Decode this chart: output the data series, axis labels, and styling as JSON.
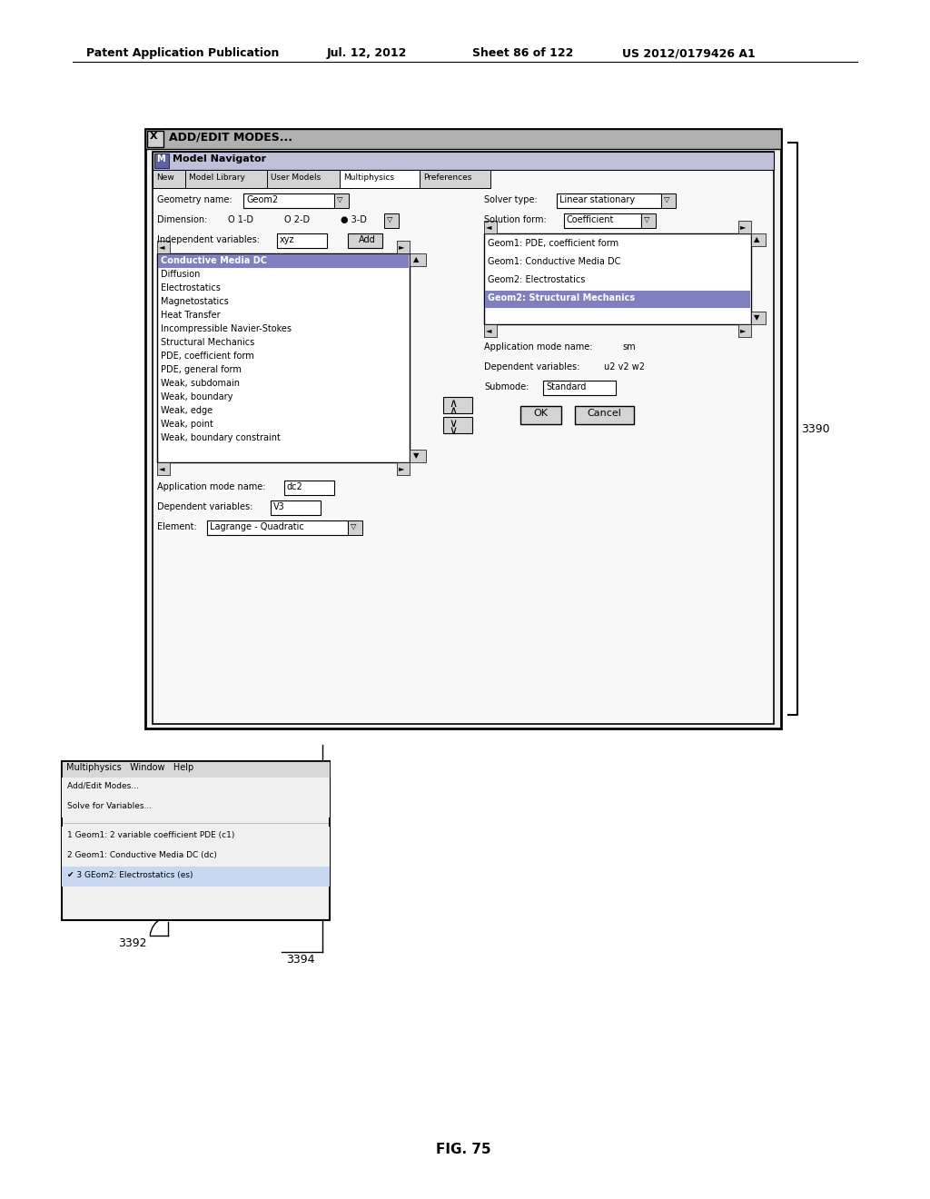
{
  "bg_color": "#ffffff",
  "header_text": "Patent Application Publication",
  "header_date": "Jul. 12, 2012",
  "header_sheet": "Sheet 86 of 122",
  "header_patent": "US 2012/0179426 A1",
  "fig_label": "FIG. 75",
  "label_3390": "3390",
  "label_3392": "3392",
  "label_3394": "3394",
  "title_main": "ADD/EDIT MODES...",
  "nav_title": "Model Navigator",
  "nav_tabs": [
    "New",
    "Model Library",
    "User Models",
    "Multiphysics",
    "Preferences"
  ],
  "geom_label": "Geometry name:",
  "geom_value": "Geom2",
  "dim_label": "Dimension:",
  "dim_options": [
    "O 1-D",
    "O 2-D",
    "● 3-D"
  ],
  "indep_label": "Independent variables:",
  "indep_value": "xyz",
  "add_btn": "Add",
  "modes_list": [
    "Conductive Media DC",
    "Diffusion",
    "Electrostatics",
    "Magnetostatics",
    "Heat Transfer",
    "Incompressible Navier-Stokes",
    "Structural Mechanics",
    "PDE, coefficient form",
    "PDE, general form",
    "Weak, subdomain",
    "Weak, boundary",
    "Weak, edge",
    "Weak, point",
    "Weak, boundary constraint"
  ],
  "modes_selected": "Conductive Media DC",
  "app_mode_label2": "Application mode name:",
  "app_mode_value2": "dc2",
  "dep_vars_label2": "Dependent variables:",
  "dep_vars_value2": "V3",
  "element_label": "Element:",
  "element_value": "Lagrange - Quadratic",
  "solver_label": "Solver type:",
  "solver_value": "Linear stationary",
  "solution_label": "Solution form:",
  "solution_value": "Coefficient",
  "right_list": [
    "Geom1: PDE, coefficient form",
    "Geom1: Conductive Media DC",
    "Geom2: Electrostatics",
    "Geom2: Structural Mechanics"
  ],
  "right_selected": "Geom2: Structural Mechanics",
  "app_mode_label": "Application mode name:",
  "app_mode_value": "sm",
  "dep_vars_label": "Dependent variables:",
  "dep_vars_value": "u2 v2 w2",
  "submode_label": "Submode:",
  "submode_value": "Standard",
  "ok_btn": "OK",
  "cancel_btn": "Cancel",
  "menu_bar": "Multiphysics   Window   Help",
  "menu_item1": "Add/Edit Modes...",
  "menu_item2": "Solve for Variables...",
  "menu_item3": "1 Geom1: 2 variable coefficient PDE (c1)",
  "menu_item4": "2 Geom1: Conductive Media DC (dc)",
  "menu_item5": "✔ 3 GEom2: Electrostatics (es)"
}
